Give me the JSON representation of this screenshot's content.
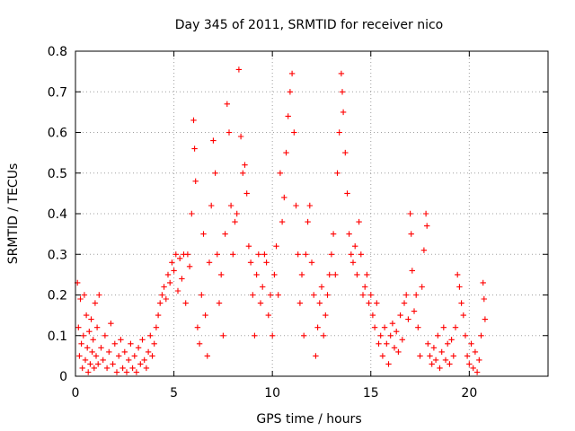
{
  "chart_data": {
    "type": "scatter",
    "title": "Day 345 of 2011, SRMTID for receiver nico",
    "xlabel": "GPS time / hours",
    "ylabel": "SRMTID / TECUs",
    "xlim": [
      0,
      24
    ],
    "ylim": [
      0,
      0.8
    ],
    "x_ticks": [
      0,
      5,
      10,
      15,
      20
    ],
    "x_tick_labels": [
      "0",
      "5",
      "10",
      "15",
      "20"
    ],
    "y_ticks": [
      0,
      0.1,
      0.2,
      0.3,
      0.4,
      0.5,
      0.6,
      0.7,
      0.8
    ],
    "y_tick_labels": [
      "0",
      "0.1",
      "0.2",
      "0.3",
      "0.4",
      "0.5",
      "0.6",
      "0.7",
      "0.8"
    ],
    "grid": true,
    "marker": "+",
    "color": "#ff0000",
    "series": [
      {
        "name": "nico",
        "points": [
          [
            0.1,
            0.23
          ],
          [
            0.15,
            0.12
          ],
          [
            0.2,
            0.05
          ],
          [
            0.25,
            0.19
          ],
          [
            0.3,
            0.08
          ],
          [
            0.35,
            0.02
          ],
          [
            0.4,
            0.1
          ],
          [
            0.45,
            0.2
          ],
          [
            0.5,
            0.04
          ],
          [
            0.55,
            0.15
          ],
          [
            0.6,
            0.07
          ],
          [
            0.65,
            0.01
          ],
          [
            0.7,
            0.11
          ],
          [
            0.75,
            0.03
          ],
          [
            0.8,
            0.14
          ],
          [
            0.85,
            0.06
          ],
          [
            0.9,
            0.09
          ],
          [
            0.95,
            0.02
          ],
          [
            1.0,
            0.18
          ],
          [
            1.05,
            0.05
          ],
          [
            1.1,
            0.12
          ],
          [
            1.15,
            0.03
          ],
          [
            1.2,
            0.2
          ],
          [
            1.3,
            0.07
          ],
          [
            1.4,
            0.04
          ],
          [
            1.5,
            0.1
          ],
          [
            1.6,
            0.02
          ],
          [
            1.7,
            0.06
          ],
          [
            1.8,
            0.13
          ],
          [
            1.9,
            0.03
          ],
          [
            2.0,
            0.08
          ],
          [
            2.1,
            0.01
          ],
          [
            2.2,
            0.05
          ],
          [
            2.3,
            0.09
          ],
          [
            2.4,
            0.02
          ],
          [
            2.5,
            0.06
          ],
          [
            2.6,
            0.01
          ],
          [
            2.7,
            0.04
          ],
          [
            2.8,
            0.08
          ],
          [
            2.9,
            0.02
          ],
          [
            3.0,
            0.05
          ],
          [
            3.1,
            0.01
          ],
          [
            3.2,
            0.07
          ],
          [
            3.3,
            0.03
          ],
          [
            3.4,
            0.09
          ],
          [
            3.5,
            0.04
          ],
          [
            3.6,
            0.02
          ],
          [
            3.7,
            0.06
          ],
          [
            3.8,
            0.1
          ],
          [
            3.9,
            0.05
          ],
          [
            4.0,
            0.08
          ],
          [
            4.1,
            0.12
          ],
          [
            4.2,
            0.15
          ],
          [
            4.3,
            0.18
          ],
          [
            4.4,
            0.2
          ],
          [
            4.5,
            0.22
          ],
          [
            4.6,
            0.19
          ],
          [
            4.7,
            0.25
          ],
          [
            4.8,
            0.23
          ],
          [
            4.9,
            0.28
          ],
          [
            5.0,
            0.26
          ],
          [
            5.1,
            0.3
          ],
          [
            5.2,
            0.21
          ],
          [
            5.3,
            0.29
          ],
          [
            5.4,
            0.24
          ],
          [
            5.5,
            0.3
          ],
          [
            5.6,
            0.18
          ],
          [
            5.7,
            0.3
          ],
          [
            5.8,
            0.27
          ],
          [
            5.9,
            0.4
          ],
          [
            6.0,
            0.63
          ],
          [
            6.05,
            0.56
          ],
          [
            6.1,
            0.48
          ],
          [
            6.2,
            0.12
          ],
          [
            6.3,
            0.08
          ],
          [
            6.4,
            0.2
          ],
          [
            6.5,
            0.35
          ],
          [
            6.6,
            0.15
          ],
          [
            6.7,
            0.05
          ],
          [
            6.8,
            0.28
          ],
          [
            6.9,
            0.42
          ],
          [
            7.0,
            0.58
          ],
          [
            7.1,
            0.5
          ],
          [
            7.2,
            0.3
          ],
          [
            7.3,
            0.18
          ],
          [
            7.4,
            0.25
          ],
          [
            7.5,
            0.1
          ],
          [
            7.6,
            0.35
          ],
          [
            7.7,
            0.67
          ],
          [
            7.8,
            0.6
          ],
          [
            7.9,
            0.42
          ],
          [
            8.0,
            0.3
          ],
          [
            8.1,
            0.38
          ],
          [
            8.2,
            0.4
          ],
          [
            8.3,
            0.755
          ],
          [
            8.4,
            0.59
          ],
          [
            8.5,
            0.5
          ],
          [
            8.6,
            0.52
          ],
          [
            8.7,
            0.45
          ],
          [
            8.8,
            0.32
          ],
          [
            8.9,
            0.28
          ],
          [
            9.0,
            0.2
          ],
          [
            9.1,
            0.1
          ],
          [
            9.2,
            0.25
          ],
          [
            9.3,
            0.3
          ],
          [
            9.4,
            0.18
          ],
          [
            9.5,
            0.22
          ],
          [
            9.6,
            0.3
          ],
          [
            9.7,
            0.28
          ],
          [
            9.8,
            0.15
          ],
          [
            9.9,
            0.2
          ],
          [
            10.0,
            0.1
          ],
          [
            10.1,
            0.25
          ],
          [
            10.2,
            0.32
          ],
          [
            10.3,
            0.2
          ],
          [
            10.4,
            0.5
          ],
          [
            10.5,
            0.38
          ],
          [
            10.6,
            0.44
          ],
          [
            10.7,
            0.55
          ],
          [
            10.8,
            0.64
          ],
          [
            10.9,
            0.7
          ],
          [
            11.0,
            0.745
          ],
          [
            11.1,
            0.6
          ],
          [
            11.2,
            0.42
          ],
          [
            11.3,
            0.3
          ],
          [
            11.4,
            0.18
          ],
          [
            11.5,
            0.25
          ],
          [
            11.6,
            0.1
          ],
          [
            11.7,
            0.3
          ],
          [
            11.8,
            0.38
          ],
          [
            11.9,
            0.42
          ],
          [
            12.0,
            0.28
          ],
          [
            12.1,
            0.2
          ],
          [
            12.2,
            0.05
          ],
          [
            12.3,
            0.12
          ],
          [
            12.4,
            0.18
          ],
          [
            12.5,
            0.22
          ],
          [
            12.6,
            0.1
          ],
          [
            12.7,
            0.15
          ],
          [
            12.8,
            0.2
          ],
          [
            12.9,
            0.25
          ],
          [
            13.0,
            0.3
          ],
          [
            13.1,
            0.35
          ],
          [
            13.2,
            0.25
          ],
          [
            13.3,
            0.5
          ],
          [
            13.4,
            0.6
          ],
          [
            13.5,
            0.745
          ],
          [
            13.55,
            0.7
          ],
          [
            13.6,
            0.65
          ],
          [
            13.7,
            0.55
          ],
          [
            13.8,
            0.45
          ],
          [
            13.9,
            0.35
          ],
          [
            14.0,
            0.3
          ],
          [
            14.1,
            0.28
          ],
          [
            14.2,
            0.32
          ],
          [
            14.3,
            0.25
          ],
          [
            14.4,
            0.38
          ],
          [
            14.5,
            0.3
          ],
          [
            14.6,
            0.2
          ],
          [
            14.7,
            0.22
          ],
          [
            14.8,
            0.25
          ],
          [
            14.9,
            0.18
          ],
          [
            15.0,
            0.2
          ],
          [
            15.1,
            0.15
          ],
          [
            15.2,
            0.12
          ],
          [
            15.3,
            0.18
          ],
          [
            15.4,
            0.08
          ],
          [
            15.5,
            0.1
          ],
          [
            15.6,
            0.05
          ],
          [
            15.7,
            0.12
          ],
          [
            15.8,
            0.08
          ],
          [
            15.9,
            0.03
          ],
          [
            16.0,
            0.1
          ],
          [
            16.1,
            0.13
          ],
          [
            16.2,
            0.07
          ],
          [
            16.3,
            0.11
          ],
          [
            16.4,
            0.06
          ],
          [
            16.5,
            0.15
          ],
          [
            16.6,
            0.09
          ],
          [
            16.7,
            0.18
          ],
          [
            16.8,
            0.2
          ],
          [
            16.9,
            0.14
          ],
          [
            17.0,
            0.4
          ],
          [
            17.05,
            0.35
          ],
          [
            17.1,
            0.26
          ],
          [
            17.2,
            0.16
          ],
          [
            17.3,
            0.2
          ],
          [
            17.4,
            0.12
          ],
          [
            17.5,
            0.05
          ],
          [
            17.6,
            0.22
          ],
          [
            17.7,
            0.31
          ],
          [
            17.8,
            0.4
          ],
          [
            17.85,
            0.37
          ],
          [
            17.9,
            0.08
          ],
          [
            18.0,
            0.05
          ],
          [
            18.1,
            0.03
          ],
          [
            18.2,
            0.07
          ],
          [
            18.3,
            0.04
          ],
          [
            18.4,
            0.1
          ],
          [
            18.5,
            0.02
          ],
          [
            18.6,
            0.06
          ],
          [
            18.7,
            0.12
          ],
          [
            18.8,
            0.04
          ],
          [
            18.9,
            0.08
          ],
          [
            19.0,
            0.03
          ],
          [
            19.1,
            0.09
          ],
          [
            19.2,
            0.05
          ],
          [
            19.3,
            0.12
          ],
          [
            19.4,
            0.25
          ],
          [
            19.5,
            0.22
          ],
          [
            19.6,
            0.18
          ],
          [
            19.7,
            0.15
          ],
          [
            19.8,
            0.1
          ],
          [
            19.9,
            0.05
          ],
          [
            20.0,
            0.03
          ],
          [
            20.1,
            0.08
          ],
          [
            20.2,
            0.02
          ],
          [
            20.3,
            0.06
          ],
          [
            20.4,
            0.01
          ],
          [
            20.5,
            0.04
          ],
          [
            20.6,
            0.1
          ],
          [
            20.7,
            0.23
          ],
          [
            20.75,
            0.19
          ],
          [
            20.8,
            0.14
          ]
        ]
      }
    ]
  }
}
